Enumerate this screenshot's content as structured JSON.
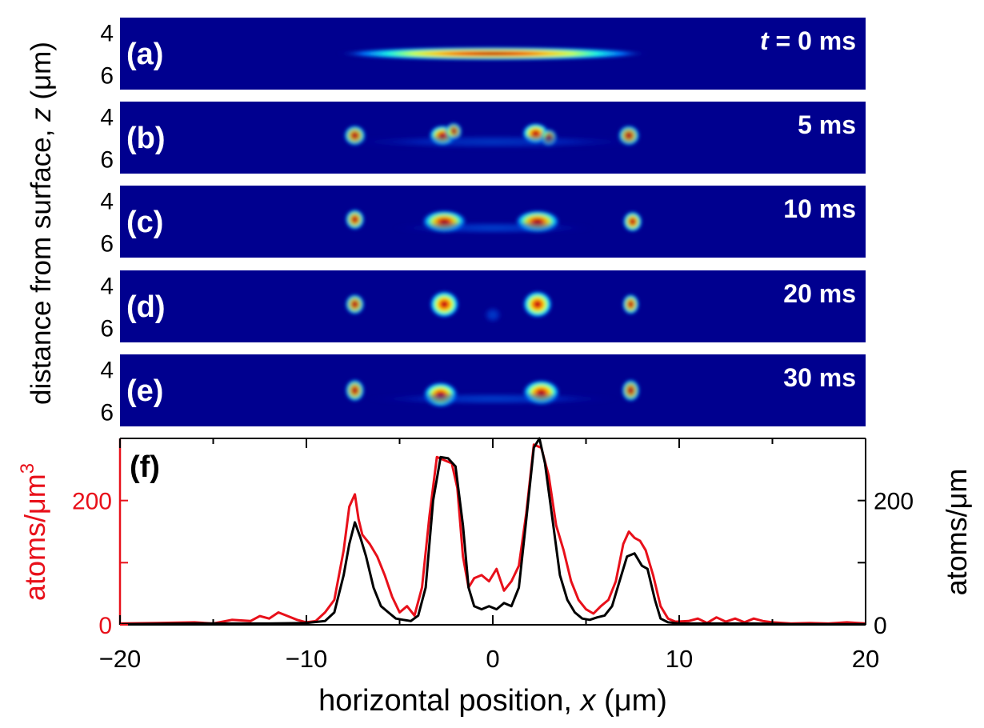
{
  "chart_data": [
    {
      "type": "heatmap",
      "panels": [
        {
          "label": "(a)",
          "time_text": "0 ms",
          "time_prefix": "t",
          "time_eq": " = ",
          "features": [
            {
              "x": 0,
              "z": 5.0,
              "sx": 6.2,
              "sz": 0.22,
              "amp": 1.0
            }
          ]
        },
        {
          "label": "(b)",
          "time_text": "5 ms",
          "features": [
            {
              "x": -7.4,
              "z": 4.9,
              "sx": 0.45,
              "sz": 0.35,
              "amp": 0.7
            },
            {
              "x": -2.7,
              "z": 4.9,
              "sx": 0.55,
              "sz": 0.35,
              "amp": 0.85
            },
            {
              "x": -2.1,
              "z": 4.7,
              "sx": 0.35,
              "sz": 0.3,
              "amp": 0.6
            },
            {
              "x": 2.3,
              "z": 4.8,
              "sx": 0.55,
              "sz": 0.35,
              "amp": 0.9
            },
            {
              "x": 3.0,
              "z": 5.0,
              "sx": 0.35,
              "sz": 0.3,
              "amp": 0.5
            },
            {
              "x": 7.3,
              "z": 4.9,
              "sx": 0.45,
              "sz": 0.35,
              "amp": 0.65
            },
            {
              "x": 0,
              "z": 5.2,
              "sx": 6.0,
              "sz": 0.25,
              "amp": 0.12
            }
          ]
        },
        {
          "label": "(c)",
          "time_text": "10 ms",
          "features": [
            {
              "x": -7.4,
              "z": 4.9,
              "sx": 0.4,
              "sz": 0.35,
              "amp": 0.75
            },
            {
              "x": -2.6,
              "z": 5.0,
              "sx": 0.9,
              "sz": 0.38,
              "amp": 0.85
            },
            {
              "x": 2.4,
              "z": 5.0,
              "sx": 0.9,
              "sz": 0.38,
              "amp": 0.85
            },
            {
              "x": 7.5,
              "z": 5.0,
              "sx": 0.4,
              "sz": 0.35,
              "amp": 0.8
            },
            {
              "x": 0,
              "z": 5.3,
              "sx": 4.0,
              "sz": 0.22,
              "amp": 0.25
            }
          ]
        },
        {
          "label": "(d)",
          "time_text": "20 ms",
          "features": [
            {
              "x": -7.4,
              "z": 4.9,
              "sx": 0.4,
              "sz": 0.35,
              "amp": 0.7
            },
            {
              "x": -2.6,
              "z": 4.9,
              "sx": 0.6,
              "sz": 0.45,
              "amp": 0.95
            },
            {
              "x": 2.4,
              "z": 4.9,
              "sx": 0.6,
              "sz": 0.45,
              "amp": 0.95
            },
            {
              "x": 7.4,
              "z": 4.9,
              "sx": 0.35,
              "sz": 0.35,
              "amp": 0.75
            },
            {
              "x": 0,
              "z": 5.4,
              "sx": 0.4,
              "sz": 0.3,
              "amp": 0.25
            }
          ]
        },
        {
          "label": "(e)",
          "time_text": "30 ms",
          "features": [
            {
              "x": -7.4,
              "z": 5.0,
              "sx": 0.4,
              "sz": 0.38,
              "amp": 0.7
            },
            {
              "x": -2.8,
              "z": 5.2,
              "sx": 0.7,
              "sz": 0.42,
              "amp": 0.95
            },
            {
              "x": 2.6,
              "z": 5.1,
              "sx": 0.75,
              "sz": 0.42,
              "amp": 0.95
            },
            {
              "x": 7.4,
              "z": 5.0,
              "sx": 0.38,
              "sz": 0.38,
              "amp": 0.65
            },
            {
              "x": 0,
              "z": 5.4,
              "sx": 5.0,
              "sz": 0.22,
              "amp": 0.22
            }
          ]
        }
      ],
      "ylabel": "distance from surface, z (μm)",
      "ylabel_prefix": "distance from surface, ",
      "ylabel_var": "z",
      "ylabel_suffix": " (μm)",
      "yticks": [
        4,
        6
      ],
      "z_range": [
        3.3,
        6.7
      ],
      "x_range": [
        -20,
        20
      ],
      "colormap": "jet"
    },
    {
      "type": "line",
      "panel_label": "(f)",
      "xlabel": "horizontal position, x (μm)",
      "xlabel_prefix": "horizontal position, ",
      "xlabel_var": "x",
      "xlabel_suffix": " (μm)",
      "xlim": [
        -20,
        20
      ],
      "xticks": [
        -20,
        -10,
        0,
        10,
        20
      ],
      "xtick_labels": [
        "−20",
        "−10",
        "0",
        "10",
        "20"
      ],
      "y_left": {
        "label": "atoms/μm",
        "label_sup": "3",
        "lim": [
          0,
          300
        ],
        "ticks": [
          0,
          100,
          200
        ],
        "tick_labels": [
          "0",
          "",
          "200"
        ],
        "color": "#e8101a"
      },
      "y_right": {
        "label": "atoms/μm",
        "lim": [
          0,
          300
        ],
        "ticks": [
          0,
          100,
          200
        ],
        "tick_labels": [
          "0",
          "",
          "200"
        ],
        "color": "#000000"
      },
      "series": [
        {
          "name": "atoms/μm³",
          "axis": "left",
          "color": "#e8101a",
          "x": [
            -20,
            -18,
            -16,
            -15,
            -14,
            -13,
            -12.5,
            -12,
            -11.5,
            -11,
            -10.5,
            -10,
            -9.5,
            -9,
            -8.5,
            -8,
            -7.7,
            -7.4,
            -7.2,
            -7.0,
            -6.6,
            -6.2,
            -5.8,
            -5.4,
            -5.0,
            -4.6,
            -4.2,
            -3.8,
            -3.4,
            -3.0,
            -2.6,
            -2.2,
            -1.9,
            -1.6,
            -1.3,
            -1.0,
            -0.6,
            -0.2,
            0.2,
            0.6,
            1.0,
            1.4,
            1.8,
            2.2,
            2.6,
            3.0,
            3.4,
            3.8,
            4.2,
            4.6,
            5.0,
            5.4,
            5.8,
            6.2,
            6.6,
            7.0,
            7.3,
            7.6,
            7.9,
            8.2,
            8.6,
            9.0,
            9.4,
            9.8,
            10.5,
            11,
            11.5,
            12,
            12.5,
            13,
            13.5,
            14,
            14.5,
            15,
            16,
            17,
            18,
            19,
            20
          ],
          "values": [
            2,
            3,
            4,
            2,
            8,
            6,
            14,
            10,
            20,
            14,
            8,
            4,
            6,
            20,
            40,
            120,
            190,
            210,
            170,
            145,
            130,
            110,
            80,
            45,
            20,
            30,
            15,
            60,
            175,
            270,
            265,
            260,
            220,
            110,
            60,
            75,
            80,
            70,
            90,
            55,
            70,
            95,
            180,
            290,
            285,
            240,
            160,
            120,
            70,
            40,
            25,
            18,
            30,
            40,
            70,
            130,
            150,
            140,
            135,
            120,
            80,
            30,
            10,
            5,
            6,
            10,
            3,
            12,
            5,
            10,
            4,
            10,
            6,
            4,
            2,
            3,
            2,
            4,
            2
          ]
        },
        {
          "name": "atoms/μm",
          "axis": "right",
          "color": "#000000",
          "x": [
            -20,
            -16,
            -12,
            -10,
            -9.0,
            -8.5,
            -8.0,
            -7.7,
            -7.4,
            -7.1,
            -6.8,
            -6.4,
            -6.0,
            -5.6,
            -5.2,
            -4.8,
            -4.4,
            -4.0,
            -3.6,
            -3.2,
            -2.8,
            -2.4,
            -2.0,
            -1.6,
            -1.3,
            -1.0,
            -0.6,
            -0.2,
            0.2,
            0.6,
            1.0,
            1.4,
            1.8,
            2.2,
            2.5,
            2.8,
            3.2,
            3.6,
            4.0,
            4.4,
            4.8,
            5.2,
            5.6,
            6.0,
            6.4,
            6.8,
            7.2,
            7.6,
            8.0,
            8.3,
            8.7,
            9.0,
            9.4,
            10,
            12,
            14,
            16,
            20
          ],
          "values": [
            1,
            2,
            2,
            3,
            6,
            20,
            80,
            130,
            165,
            140,
            110,
            60,
            30,
            20,
            10,
            8,
            6,
            15,
            60,
            200,
            270,
            268,
            255,
            160,
            60,
            30,
            25,
            30,
            25,
            35,
            30,
            60,
            170,
            285,
            300,
            260,
            170,
            80,
            40,
            20,
            10,
            8,
            12,
            15,
            30,
            70,
            110,
            115,
            95,
            90,
            40,
            10,
            4,
            2,
            2,
            2,
            1,
            1
          ]
        }
      ]
    }
  ]
}
